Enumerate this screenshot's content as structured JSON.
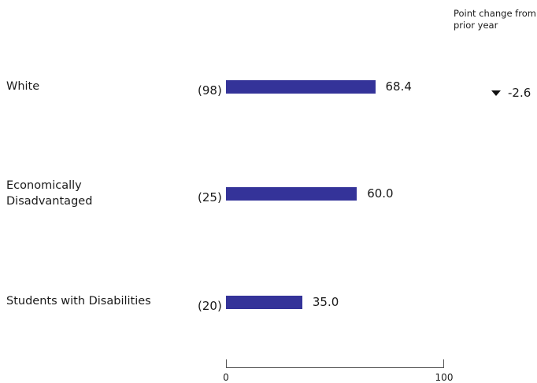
{
  "chart_data": {
    "type": "bar",
    "orientation": "horizontal",
    "categories": [
      "White",
      "Economically Disadvantaged",
      "Students with Disabilities"
    ],
    "counts": [
      "(98)",
      "(25)",
      "(20)"
    ],
    "values": [
      68.4,
      60.0,
      35.0
    ],
    "value_labels": [
      "68.4",
      "60.0",
      "35.0"
    ],
    "xlim": [
      0,
      100
    ],
    "x_ticks": [
      "0",
      "100"
    ],
    "bar_color": "#343399",
    "change_header": "Point change from prior year",
    "changes": [
      {
        "direction": "down",
        "value": "-2.6"
      },
      null,
      null
    ]
  }
}
